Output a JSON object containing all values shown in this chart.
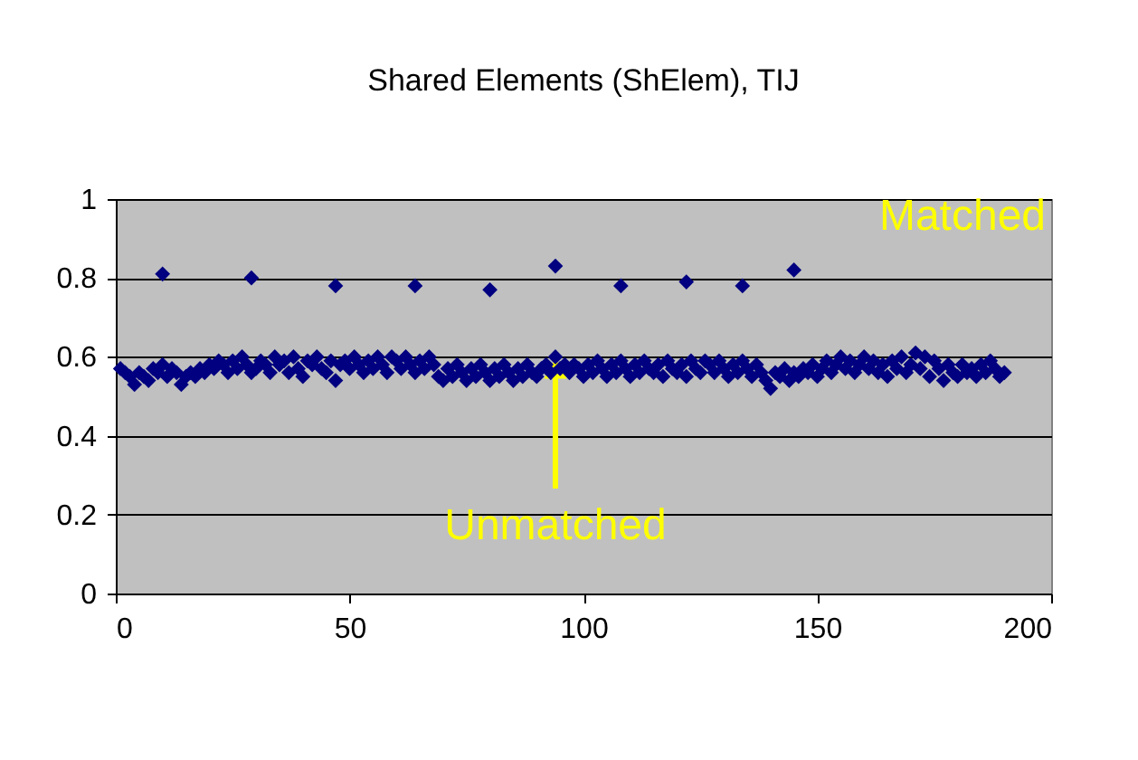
{
  "chart_data": {
    "type": "scatter",
    "title": "Shared Elements (ShElem), TIJ",
    "x": [
      1,
      2,
      3,
      4,
      5,
      6,
      7,
      8,
      9,
      10,
      11,
      12,
      13,
      14,
      15,
      16,
      17,
      18,
      19,
      20,
      21,
      22,
      23,
      24,
      25,
      26,
      27,
      28,
      29,
      30,
      31,
      32,
      33,
      34,
      35,
      36,
      37,
      38,
      39,
      40,
      41,
      42,
      43,
      44,
      45,
      46,
      47,
      48,
      49,
      50,
      51,
      52,
      53,
      54,
      55,
      56,
      57,
      58,
      59,
      60,
      61,
      62,
      63,
      64,
      65,
      66,
      67,
      68,
      69,
      70,
      71,
      72,
      73,
      74,
      75,
      76,
      77,
      78,
      79,
      80,
      81,
      82,
      83,
      84,
      85,
      86,
      87,
      88,
      89,
      90,
      91,
      92,
      93,
      94,
      95,
      96,
      97,
      98,
      99,
      100,
      101,
      102,
      103,
      104,
      105,
      106,
      107,
      108,
      109,
      110,
      111,
      112,
      113,
      114,
      115,
      116,
      117,
      118,
      119,
      120,
      121,
      122,
      123,
      124,
      125,
      126,
      127,
      128,
      129,
      130,
      131,
      132,
      133,
      134,
      135,
      136,
      137,
      138,
      139,
      140,
      141,
      142,
      143,
      144,
      145,
      146,
      147,
      148,
      149,
      150,
      151,
      152,
      153,
      154,
      155,
      156,
      157,
      158,
      159,
      160,
      161,
      162,
      163,
      164,
      165,
      166,
      167,
      168,
      169,
      170,
      171,
      172,
      173,
      174,
      175,
      176,
      177,
      178,
      179,
      180,
      181,
      182,
      183,
      184,
      185,
      186,
      187,
      188,
      189,
      190,
      10,
      29,
      47,
      64,
      80,
      94,
      108,
      122,
      134,
      145
    ],
    "series": [
      {
        "color": "#000080",
        "values": [
          0.57,
          0.56,
          0.55,
          0.53,
          0.56,
          0.55,
          0.54,
          0.57,
          0.56,
          0.58,
          0.55,
          0.57,
          0.56,
          0.53,
          0.55,
          0.56,
          0.55,
          0.57,
          0.56,
          0.58,
          0.57,
          0.59,
          0.58,
          0.56,
          0.59,
          0.57,
          0.6,
          0.58,
          0.56,
          0.57,
          0.59,
          0.58,
          0.56,
          0.6,
          0.58,
          0.59,
          0.56,
          0.6,
          0.57,
          0.55,
          0.59,
          0.58,
          0.6,
          0.57,
          0.56,
          0.59,
          0.54,
          0.58,
          0.59,
          0.57,
          0.6,
          0.58,
          0.56,
          0.59,
          0.57,
          0.6,
          0.58,
          0.56,
          0.6,
          0.59,
          0.57,
          0.6,
          0.58,
          0.56,
          0.59,
          0.57,
          0.6,
          0.58,
          0.55,
          0.54,
          0.57,
          0.55,
          0.58,
          0.56,
          0.54,
          0.57,
          0.55,
          0.58,
          0.56,
          0.54,
          0.57,
          0.55,
          0.58,
          0.56,
          0.54,
          0.57,
          0.55,
          0.58,
          0.56,
          0.55,
          0.57,
          0.58,
          0.56,
          0.6,
          0.57,
          0.58,
          0.56,
          0.58,
          0.57,
          0.55,
          0.58,
          0.56,
          0.59,
          0.57,
          0.55,
          0.58,
          0.56,
          0.59,
          0.57,
          0.55,
          0.58,
          0.56,
          0.59,
          0.57,
          0.56,
          0.58,
          0.55,
          0.59,
          0.57,
          0.56,
          0.58,
          0.55,
          0.59,
          0.57,
          0.56,
          0.59,
          0.58,
          0.56,
          0.59,
          0.57,
          0.55,
          0.58,
          0.56,
          0.59,
          0.57,
          0.55,
          0.58,
          0.56,
          0.54,
          0.52,
          0.56,
          0.55,
          0.57,
          0.54,
          0.56,
          0.55,
          0.57,
          0.56,
          0.58,
          0.55,
          0.57,
          0.59,
          0.56,
          0.58,
          0.6,
          0.57,
          0.59,
          0.56,
          0.58,
          0.6,
          0.57,
          0.59,
          0.56,
          0.58,
          0.55,
          0.59,
          0.57,
          0.6,
          0.56,
          0.58,
          0.61,
          0.57,
          0.6,
          0.55,
          0.59,
          0.57,
          0.54,
          0.58,
          0.56,
          0.55,
          0.58,
          0.56,
          0.57,
          0.55,
          0.58,
          0.56,
          0.59,
          0.57,
          0.55,
          0.56,
          0.81,
          0.8,
          0.78,
          0.78,
          0.77,
          0.83,
          0.78,
          0.79,
          0.78,
          0.82
        ]
      }
    ],
    "xlim": [
      0,
      200
    ],
    "xticks": [
      0,
      50,
      100,
      150,
      200
    ],
    "ylim": [
      0,
      1
    ],
    "yticks": [
      0,
      0.2,
      0.4,
      0.6,
      0.8,
      1
    ],
    "grid": "y",
    "marker": "diamond",
    "legend": false,
    "annotations": [
      "Matched",
      {
        "text": "Unmatched",
        "x": 94,
        "y": 0.57
      }
    ]
  }
}
